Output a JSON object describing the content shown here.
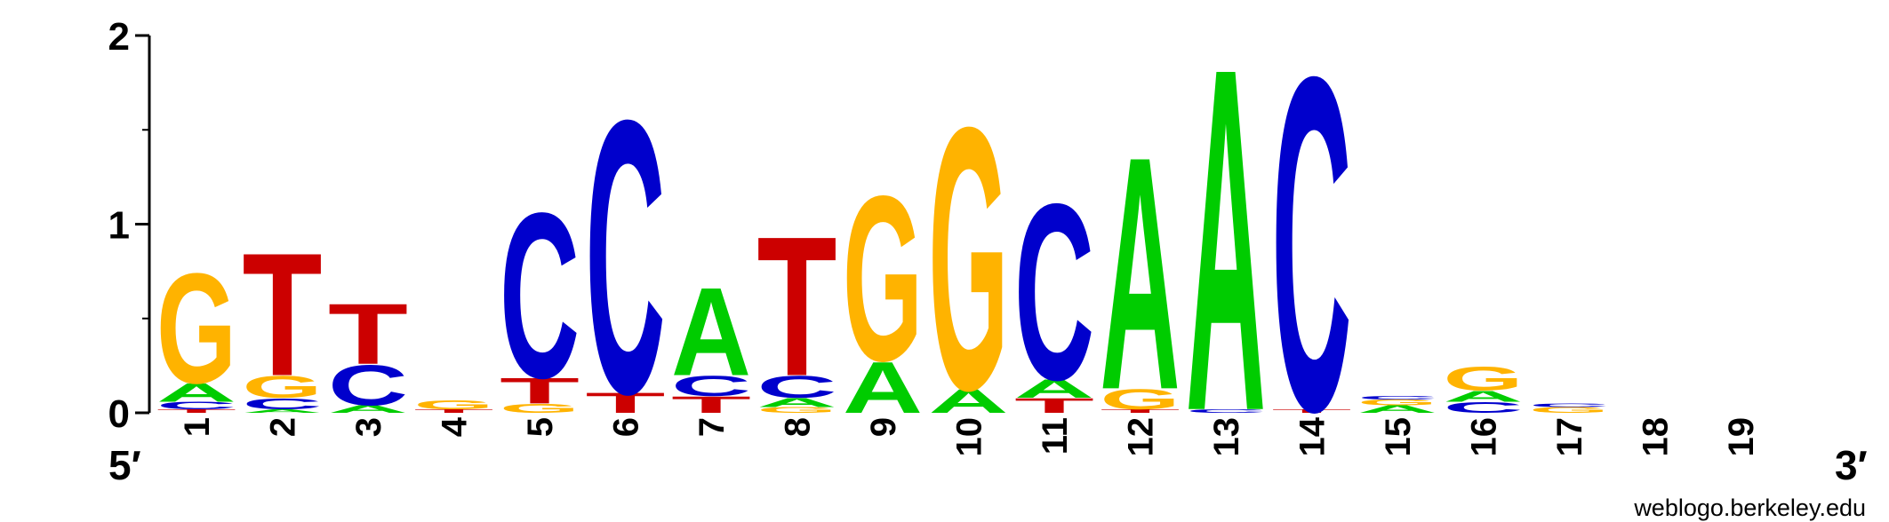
{
  "chart_data": {
    "type": "sequence-logo",
    "ylim": [
      0,
      2
    ],
    "yticks": [
      "0",
      "1",
      "2"
    ],
    "x_start_label": "5′",
    "x_end_label": "3′",
    "credit": "weblogo.berkeley.edu",
    "colors": {
      "A": "#00CC00",
      "C": "#0000CC",
      "G": "#FFB300",
      "T": "#CC0000"
    },
    "positions": [
      {
        "label": "1",
        "stack": [
          {
            "l": "T",
            "v": 0.02
          },
          {
            "l": "C",
            "v": 0.04
          },
          {
            "l": "A",
            "v": 0.1
          },
          {
            "l": "G",
            "v": 0.6
          }
        ]
      },
      {
        "label": "2",
        "stack": [
          {
            "l": "A",
            "v": 0.02
          },
          {
            "l": "C",
            "v": 0.06
          },
          {
            "l": "G",
            "v": 0.12
          },
          {
            "l": "T",
            "v": 0.67
          }
        ]
      },
      {
        "label": "3",
        "stack": [
          {
            "l": "A",
            "v": 0.04
          },
          {
            "l": "C",
            "v": 0.22
          },
          {
            "l": "T",
            "v": 0.33
          }
        ]
      },
      {
        "label": "4",
        "stack": [
          {
            "l": "T",
            "v": 0.02
          },
          {
            "l": "G",
            "v": 0.05
          }
        ]
      },
      {
        "label": "5",
        "stack": [
          {
            "l": "G",
            "v": 0.05
          },
          {
            "l": "T",
            "v": 0.14
          },
          {
            "l": "C",
            "v": 0.9
          }
        ]
      },
      {
        "label": "6",
        "stack": [
          {
            "l": "T",
            "v": 0.11
          },
          {
            "l": "C",
            "v": 1.49
          }
        ]
      },
      {
        "label": "7",
        "stack": [
          {
            "l": "T",
            "v": 0.09
          },
          {
            "l": "C",
            "v": 0.11
          },
          {
            "l": "A",
            "v": 0.48
          }
        ]
      },
      {
        "label": "8",
        "stack": [
          {
            "l": "G",
            "v": 0.03
          },
          {
            "l": "A",
            "v": 0.05
          },
          {
            "l": "C",
            "v": 0.12
          },
          {
            "l": "T",
            "v": 0.76
          }
        ]
      },
      {
        "label": "9",
        "stack": [
          {
            "l": "A",
            "v": 0.28
          },
          {
            "l": "G",
            "v": 0.9
          }
        ]
      },
      {
        "label": "10",
        "stack": [
          {
            "l": "A",
            "v": 0.13
          },
          {
            "l": "G",
            "v": 1.43
          }
        ]
      },
      {
        "label": "11",
        "stack": [
          {
            "l": "T",
            "v": 0.08
          },
          {
            "l": "A",
            "v": 0.1
          },
          {
            "l": "C",
            "v": 0.96
          }
        ]
      },
      {
        "label": "12",
        "stack": [
          {
            "l": "T",
            "v": 0.02
          },
          {
            "l": "G",
            "v": 0.11
          },
          {
            "l": "A",
            "v": 1.27
          }
        ]
      },
      {
        "label": "13",
        "stack": [
          {
            "l": "C",
            "v": 0.02
          },
          {
            "l": "A",
            "v": 1.87
          }
        ]
      },
      {
        "label": "14",
        "stack": [
          {
            "l": "T",
            "v": 0.02
          },
          {
            "l": "C",
            "v": 1.82
          }
        ]
      },
      {
        "label": "15",
        "stack": [
          {
            "l": "A",
            "v": 0.04
          },
          {
            "l": "G",
            "v": 0.03
          },
          {
            "l": "C",
            "v": 0.02
          }
        ]
      },
      {
        "label": "16",
        "stack": [
          {
            "l": "C",
            "v": 0.06
          },
          {
            "l": "A",
            "v": 0.06
          },
          {
            "l": "G",
            "v": 0.13
          }
        ]
      },
      {
        "label": "17",
        "stack": [
          {
            "l": "G",
            "v": 0.03
          },
          {
            "l": "C",
            "v": 0.02
          }
        ]
      },
      {
        "label": "18",
        "stack": []
      },
      {
        "label": "19",
        "stack": []
      }
    ]
  }
}
